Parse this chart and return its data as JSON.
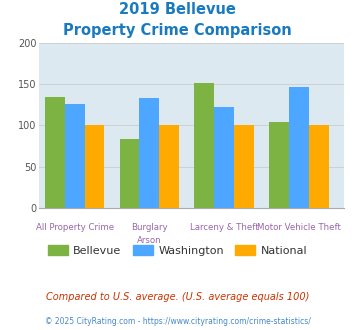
{
  "title_line1": "2019 Bellevue",
  "title_line2": "Property Crime Comparison",
  "title_color": "#1a7abf",
  "x_labels_top": [
    "All Property Crime",
    "Burglary",
    "Larceny & Theft",
    "Motor Vehicle Theft"
  ],
  "x_labels_bottom": [
    "",
    "Arson",
    "",
    ""
  ],
  "series": {
    "Bellevue": [
      135,
      84,
      151,
      104
    ],
    "Washington": [
      126,
      133,
      122,
      147
    ],
    "National": [
      100,
      100,
      100,
      100
    ]
  },
  "colors": {
    "Bellevue": "#7cb342",
    "Washington": "#4da6ff",
    "National": "#ffaa00"
  },
  "ylim": [
    0,
    200
  ],
  "yticks": [
    0,
    50,
    100,
    150,
    200
  ],
  "grid_color": "#cccccc",
  "bg_color": "#dce9f0",
  "label_color": "#9966aa",
  "footnote1": "Compared to U.S. average. (U.S. average equals 100)",
  "footnote2": "© 2025 CityRating.com - https://www.cityrating.com/crime-statistics/",
  "footnote1_color": "#cc3300",
  "footnote2_color": "#4488cc"
}
